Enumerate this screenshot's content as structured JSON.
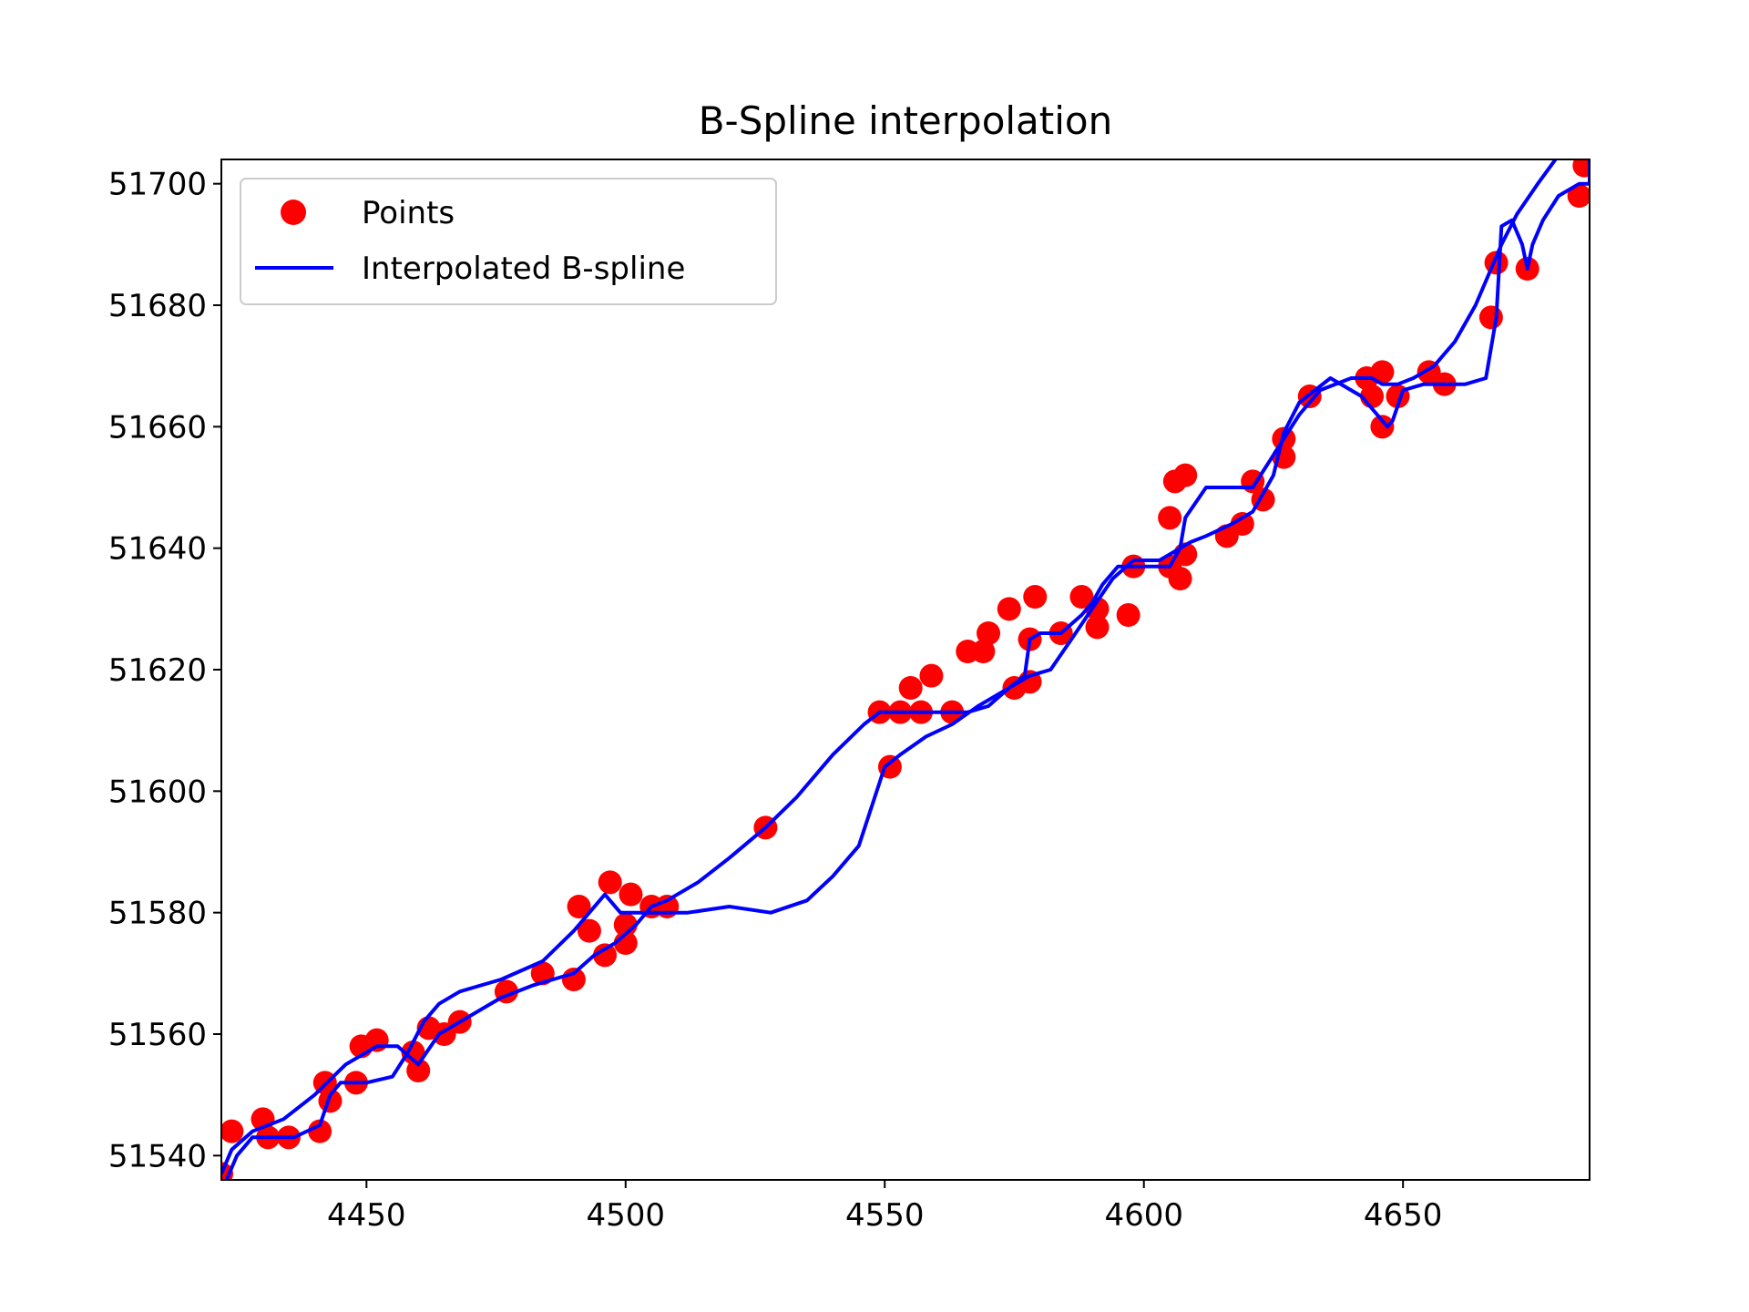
{
  "chart_data": {
    "type": "line",
    "title": "B-Spline interpolation",
    "xlabel": "",
    "ylabel": "",
    "xlim": [
      4422,
      4686
    ],
    "ylim": [
      51536,
      51704
    ],
    "xticks": [
      4450,
      4500,
      4550,
      4600,
      4650
    ],
    "yticks": [
      51540,
      51560,
      51580,
      51600,
      51620,
      51640,
      51660,
      51680,
      51700
    ],
    "grid": false,
    "legend_position": "top-left",
    "colors": {
      "points": "#ff0000",
      "spline": "#0000ff"
    },
    "series": [
      {
        "name": "Points",
        "kind": "scatter",
        "x": [
          4422,
          4424,
          4430,
          4431,
          4435,
          4441,
          4442,
          4443,
          4448,
          4449,
          4452,
          4459,
          4460,
          4462,
          4465,
          4468,
          4477,
          4484,
          4490,
          4491,
          4493,
          4496,
          4497,
          4500,
          4500,
          4501,
          4505,
          4508,
          4527,
          4549,
          4551,
          4553,
          4555,
          4557,
          4559,
          4563,
          4566,
          4569,
          4570,
          4574,
          4575,
          4578,
          4578,
          4579,
          4584,
          4588,
          4591,
          4591,
          4597,
          4598,
          4605,
          4605,
          4607,
          4606,
          4608,
          4608,
          4616,
          4619,
          4621,
          4623,
          4627,
          4627,
          4632,
          4643,
          4644,
          4646,
          4646,
          4649,
          4655,
          4658,
          4667,
          4668,
          4674,
          4684,
          4685
        ],
        "y": [
          51537,
          51544,
          51546,
          51543,
          51543,
          51544,
          51552,
          51549,
          51552,
          51558,
          51559,
          51557,
          51554,
          51561,
          51560,
          51562,
          51567,
          51570,
          51569,
          51581,
          51577,
          51573,
          51585,
          51575,
          51578,
          51583,
          51581,
          51581,
          51594,
          51613,
          51604,
          51613,
          51617,
          51613,
          51619,
          51613,
          51623,
          51623,
          51626,
          51630,
          51617,
          51625,
          51618,
          51632,
          51626,
          51632,
          51630,
          51627,
          51629,
          51637,
          51637,
          51645,
          51635,
          51651,
          51652,
          51639,
          51642,
          51644,
          51651,
          51648,
          51655,
          51658,
          51665,
          51668,
          51665,
          51669,
          51660,
          51665,
          51669,
          51667,
          51678,
          51687,
          51686,
          51698,
          51703
        ]
      },
      {
        "name": "Interpolated B-spline",
        "kind": "line",
        "x": [
          4422,
          4424,
          4428,
          4434,
          4440,
          4446,
          4452,
          4456,
          4460,
          4464,
          4470,
          4476,
          4482,
          4486,
          4490,
          4494,
          4498,
          4502,
          4505,
          4508,
          4514,
          4520,
          4527,
          4533,
          4540,
          4546,
          4549,
          4553,
          4557,
          4562,
          4566,
          4570,
          4574,
          4578,
          4582,
          4586,
          4590,
          4594,
          4598,
          4603,
          4605,
          4607,
          4608,
          4612,
          4617,
          4621,
          4624,
          4627,
          4630,
          4634,
          4640,
          4644,
          4646,
          4649,
          4652,
          4656,
          4660,
          4664,
          4667,
          4669,
          4672,
          4676,
          4682,
          4686,
          4686,
          4686,
          4684,
          4680,
          4677,
          4675,
          4674,
          4673,
          4671,
          4669,
          4668,
          4666,
          4662,
          4658,
          4654,
          4650,
          4648,
          4647,
          4645,
          4642,
          4636,
          4630,
          4627,
          4625,
          4621,
          4617,
          4612,
          4609,
          4607,
          4605,
          4600,
          4595,
          4592,
          4590,
          4588,
          4584,
          4580,
          4578,
          4577,
          4574,
          4568,
          4563,
          4558,
          4553,
          4550,
          4545,
          4540,
          4535,
          4528,
          4520,
          4512,
          4506,
          4502,
          4500,
          4499,
          4496,
          4490,
          4484,
          4476,
          4468,
          4464,
          4461,
          4458,
          4455,
          4450,
          4445,
          4443,
          4441,
          4436,
          4432,
          4428,
          4425,
          4423
        ],
        "y": [
          51537,
          51541,
          51544,
          51546,
          51550,
          51555,
          51558,
          51558,
          51555,
          51560,
          51563,
          51566,
          51568,
          51569,
          51570,
          51573,
          51575,
          51578,
          51581,
          51582,
          51585,
          51589,
          51594,
          51599,
          51606,
          51611,
          51613,
          51613,
          51613,
          51613,
          51613,
          51614,
          51617,
          51619,
          51620,
          51625,
          51630,
          51635,
          51638,
          51638,
          51639,
          51640,
          51645,
          51650,
          51650,
          51650,
          51654,
          51658,
          51662,
          51666,
          51668,
          51668,
          51667,
          51667,
          51668,
          51670,
          51674,
          51680,
          51686,
          51690,
          51695,
          51700,
          51707,
          51712,
          51704,
          51700,
          51700,
          51698,
          51694,
          51690,
          51686,
          51690,
          51694,
          51693,
          51678,
          51668,
          51667,
          51667,
          51667,
          51666,
          51661,
          51660,
          51662,
          51665,
          51668,
          51664,
          51659,
          51652,
          51646,
          51644,
          51642,
          51641,
          51640,
          51637,
          51637,
          51637,
          51634,
          51631,
          51629,
          51626,
          51626,
          51625,
          51619,
          51617,
          51614,
          51611,
          51609,
          51606,
          51604,
          51591,
          51586,
          51582,
          51580,
          51581,
          51580,
          51580,
          51580,
          51580,
          51580,
          51583,
          51577,
          51572,
          51569,
          51567,
          51565,
          51562,
          51557,
          51553,
          51552,
          51552,
          51550,
          51545,
          51543,
          51543,
          51543,
          51540,
          51536
        ]
      }
    ]
  }
}
